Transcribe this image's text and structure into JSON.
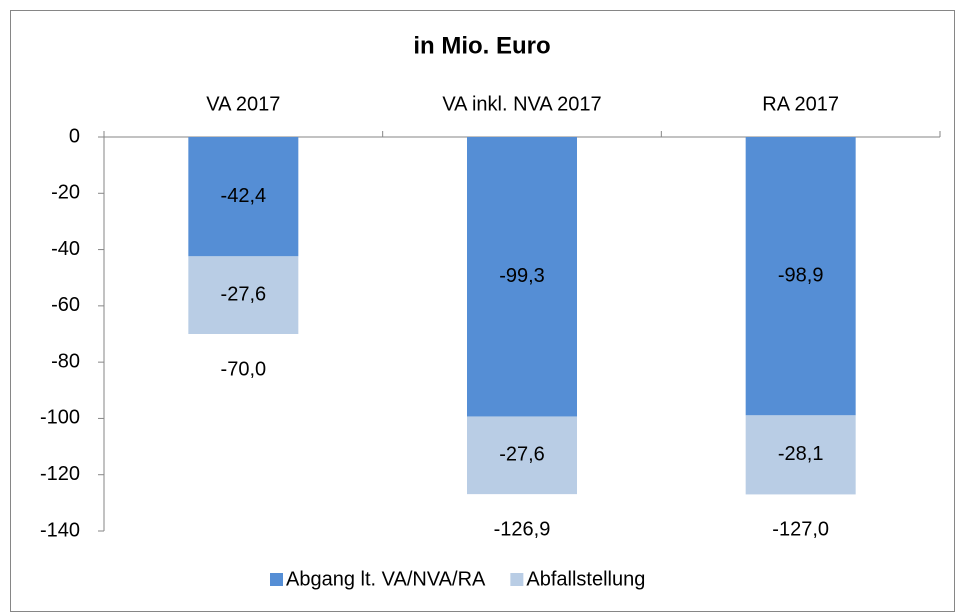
{
  "chart_data": {
    "type": "stacked_bar",
    "title": "in Mio. Euro",
    "categories": [
      "VA 2017",
      "VA inkl. NVA 2017",
      "RA 2017"
    ],
    "series": [
      {
        "name": "Abgang lt. VA/NVA/RA",
        "color": "#558ed5",
        "values": [
          -42.4,
          -99.3,
          -98.9
        ],
        "value_labels": [
          "-42,4",
          "-99,3",
          "-98,9"
        ]
      },
      {
        "name": "Abfallstellung",
        "color": "#b9cde5",
        "values": [
          -27.6,
          -27.6,
          -28.1
        ],
        "value_labels": [
          "-27,6",
          "-27,6",
          "-28,1"
        ]
      }
    ],
    "totals": [
      -70.0,
      -126.9,
      -127.0
    ],
    "total_labels": [
      "-70,0",
      "-126,9",
      "-127,0"
    ],
    "ylim": [
      -140,
      0
    ],
    "yticks": [
      0,
      -20,
      -40,
      -60,
      -80,
      -100,
      -120,
      -140
    ],
    "grid": false,
    "legend": "bottom"
  }
}
